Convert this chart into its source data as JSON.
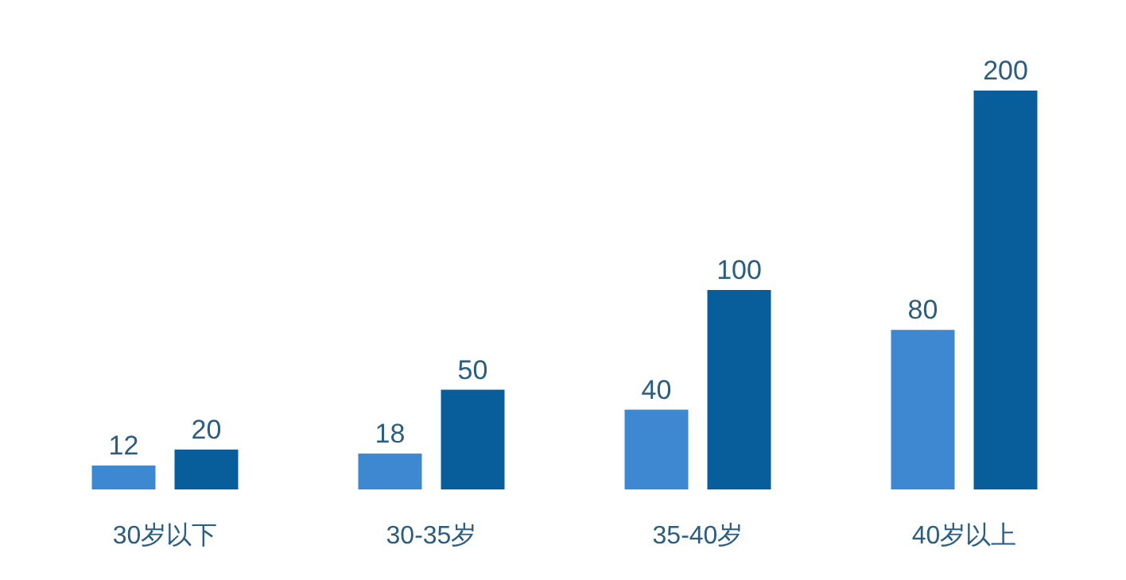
{
  "chart_data": {
    "type": "bar",
    "categories": [
      "30岁以下",
      "30-35岁",
      "35-40岁",
      "40岁以上"
    ],
    "series": [
      {
        "color": "#3d88d0",
        "values": [
          12,
          18,
          40,
          80
        ]
      },
      {
        "color": "#085e9a",
        "values": [
          20,
          50,
          100,
          200
        ]
      }
    ],
    "data_labels": true
  }
}
